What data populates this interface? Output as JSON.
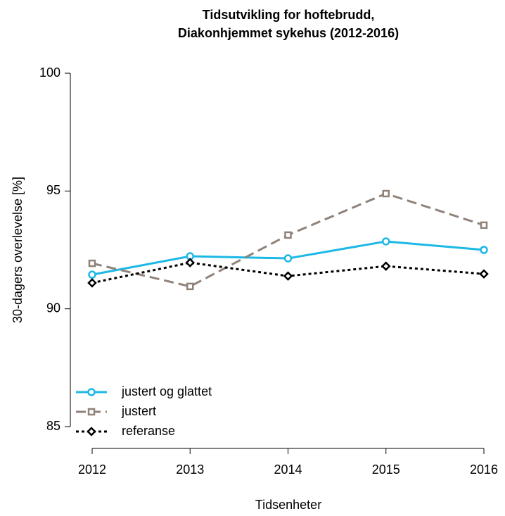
{
  "chart_data": {
    "type": "line",
    "title": [
      "Tidsutvikling for hoftebrudd,",
      "Diakonhjemmet sykehus (2012-2016)"
    ],
    "x_label": "Tidsenheter",
    "y_label": "30-dagers overlevelse [%]",
    "x": [
      2012,
      2013,
      2014,
      2015,
      2016
    ],
    "xlim": [
      2012,
      2016
    ],
    "xticks": [
      2012,
      2013,
      2014,
      2015,
      2016
    ],
    "ylim": [
      85,
      100
    ],
    "yticks": [
      85,
      90,
      95,
      100
    ],
    "legend": "bottom-left",
    "series": [
      {
        "name": "justert og glattet",
        "color": "#1cb8e6",
        "marker": "circle",
        "dash": "solid",
        "values": [
          91.45,
          92.23,
          92.14,
          92.86,
          92.5
        ]
      },
      {
        "name": "justert",
        "color": "#8f827a",
        "marker": "square",
        "dash": "dashed",
        "values": [
          91.93,
          90.95,
          93.13,
          94.89,
          93.55
        ]
      },
      {
        "name": "referanse",
        "color": "#000000",
        "marker": "diamond",
        "dash": "dotted",
        "values": [
          91.1,
          91.96,
          91.39,
          91.81,
          91.48
        ]
      }
    ]
  }
}
